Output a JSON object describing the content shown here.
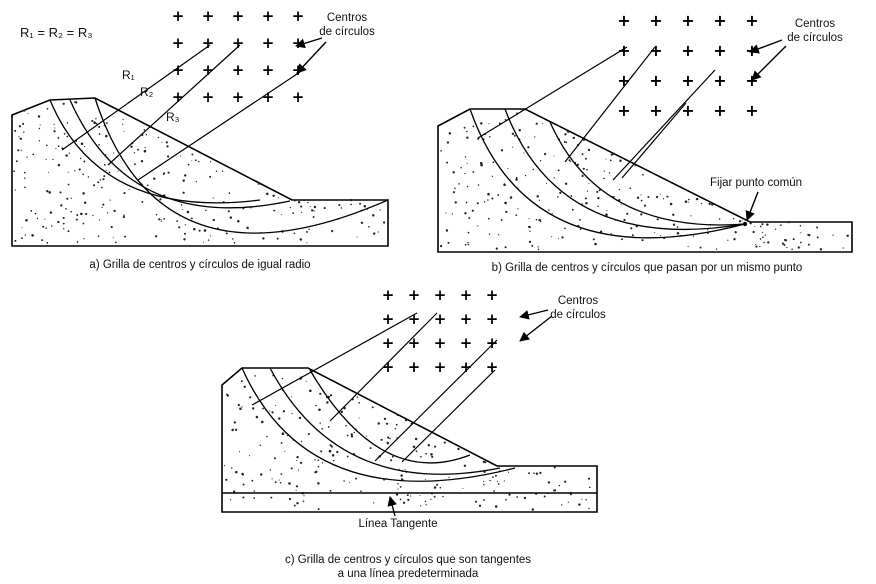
{
  "panel_a": {
    "equation": "R₁ = R₂ = R₃",
    "r1": "R₁",
    "r2": "R₂",
    "r3": "R₃",
    "centers_line1": "Centros",
    "centers_line2": "de círculos",
    "caption": "a) Grilla de centros y círculos de igual radio"
  },
  "panel_b": {
    "centers_line1": "Centros",
    "centers_line2": "de círculos",
    "fix_point": "Fijar punto común",
    "caption": "b) Grilla de centros y círculos que pasan por un mismo punto"
  },
  "panel_c": {
    "centers_line1": "Centros",
    "centers_line2": "de círculos",
    "tangent_line": "Línea Tangente",
    "caption_line1": "c) Grilla de centros y círculos que son tangentes",
    "caption_line2": "a una línea predeterminada"
  },
  "plus_symbol": "+",
  "icons": {
    "grid_marker": "plus-icon",
    "pointer": "arrow-icon"
  }
}
